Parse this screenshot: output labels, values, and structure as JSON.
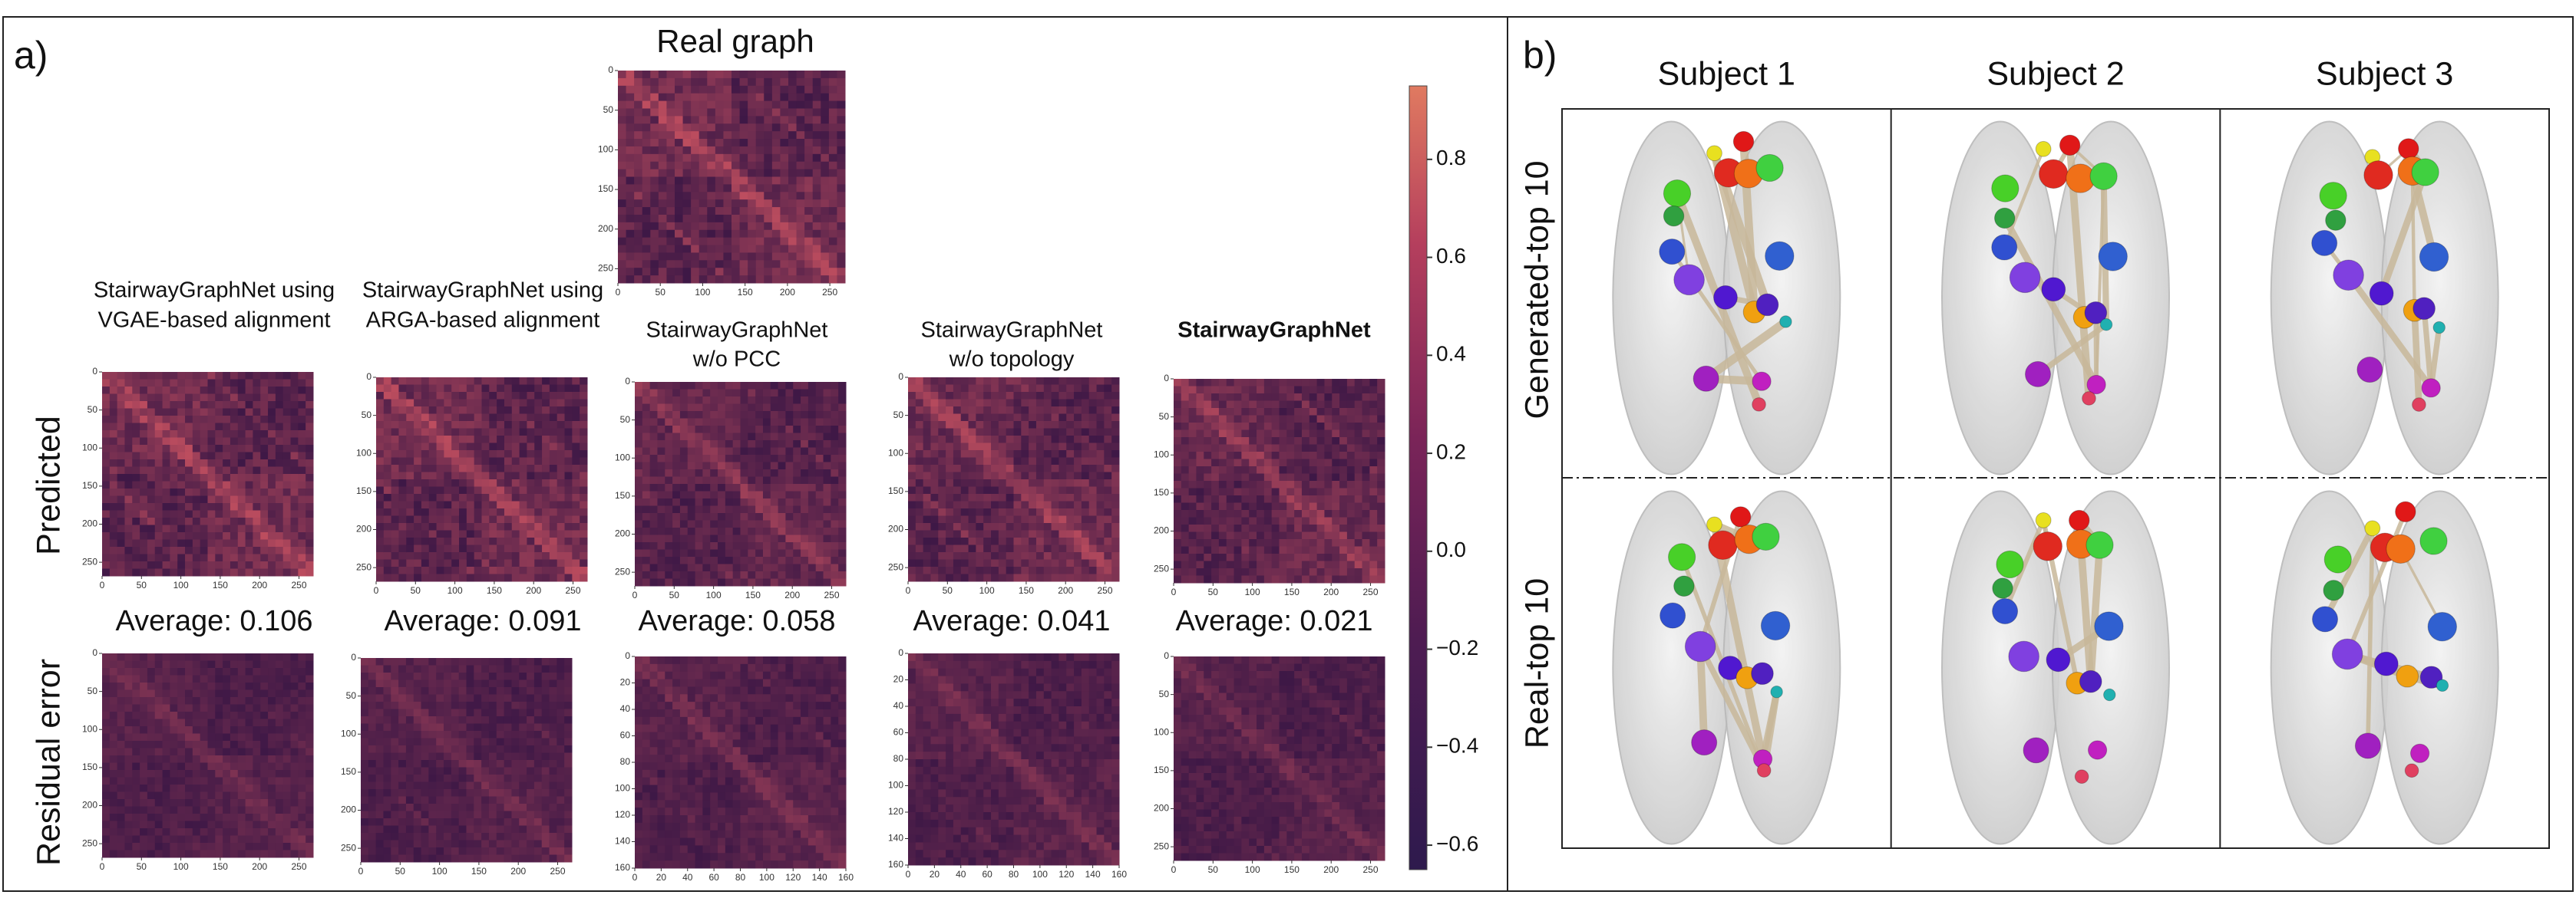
{
  "panel_a": {
    "label": "a)",
    "real_graph_title": "Real graph",
    "row_labels": [
      "Predicted",
      "Residual error"
    ],
    "matrix_lim": [
      0,
      268
    ],
    "matrix_ticks": [
      0,
      50,
      100,
      150,
      200,
      250
    ],
    "columns": [
      {
        "title_lines": [
          "StairwayGraphNet using",
          "VGAE-based alignment"
        ],
        "average": "Average: 0.106"
      },
      {
        "title_lines": [
          "StairwayGraphNet using",
          "ARGA-based alignment"
        ],
        "average": "Average: 0.091"
      },
      {
        "title_lines": [
          "StairwayGraphNet",
          "w/o PCC"
        ],
        "average": "Average: 0.058",
        "residual_lim": [
          0,
          160
        ],
        "residual_ticks": [
          0,
          20,
          40,
          60,
          80,
          100,
          120,
          140,
          160
        ]
      },
      {
        "title_lines": [
          "StairwayGraphNet",
          "w/o topology"
        ],
        "average": "Average: 0.041",
        "residual_lim": [
          0,
          160
        ],
        "residual_ticks": [
          0,
          20,
          40,
          60,
          80,
          100,
          120,
          140,
          160
        ]
      },
      {
        "title_lines": [
          "StairwayGraphNet"
        ],
        "bold": true,
        "average": "Average: 0.021",
        "average_color": "#6aa84f"
      }
    ],
    "colorbar": {
      "ylim": [
        -0.65,
        0.95
      ],
      "ticks": [
        0.8,
        0.6,
        0.4,
        0.2,
        {
          "value": 0,
          "label": "0.0"
        },
        {
          "value": -0.2,
          "label": "−0.2"
        },
        {
          "value": -0.4,
          "label": "−0.4"
        },
        {
          "value": -0.6,
          "label": "−0.6"
        }
      ]
    }
  },
  "panel_b": {
    "label": "b)",
    "subjects": [
      "Subject 1",
      "Subject 2",
      "Subject 3"
    ],
    "row_labels": [
      "Generated-top 10",
      "Real-top 10"
    ]
  }
}
